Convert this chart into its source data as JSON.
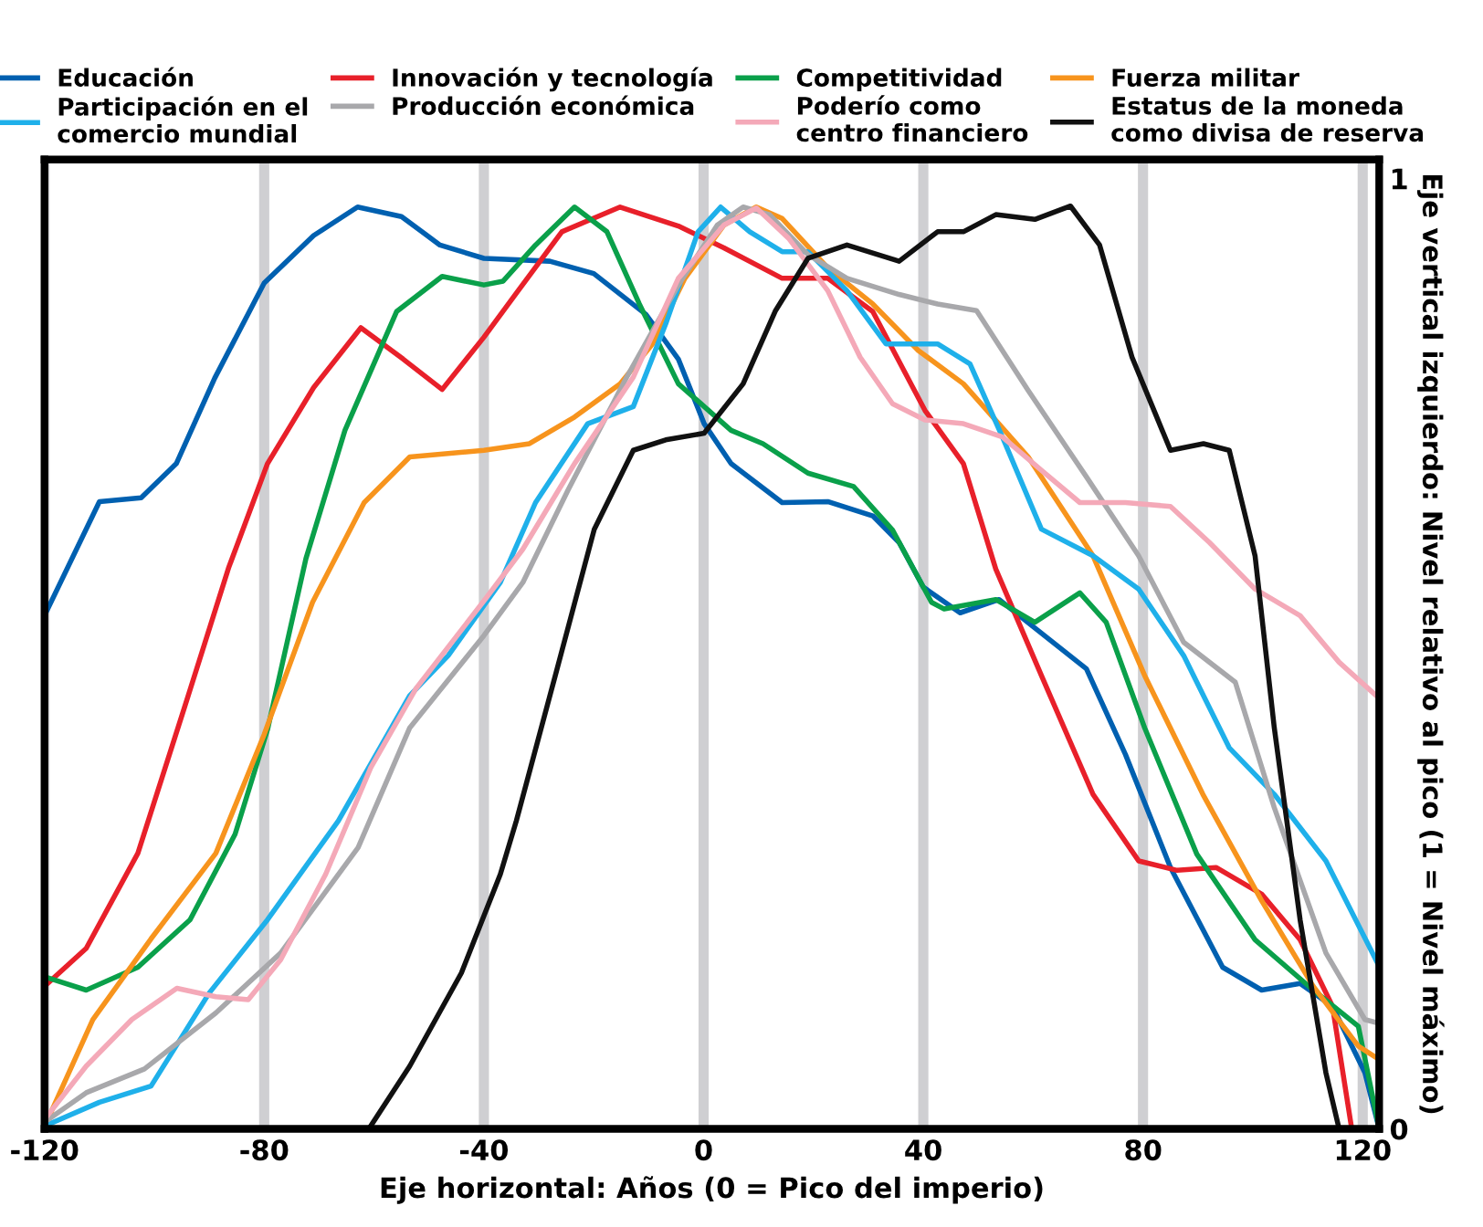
{
  "chart_data": {
    "type": "line",
    "xlabel": "Eje horizontal: Años (0 = Pico del imperio)",
    "ylabel": "Eje vertical izquierdo: Nivel relativo al pico (1 = Nivel máximo)",
    "xlim": [
      -120,
      123
    ],
    "xticks": [
      -120,
      -80,
      -40,
      0,
      40,
      80,
      120
    ],
    "ylim": [
      0,
      1.02
    ],
    "yticks": [
      0,
      1
    ],
    "grid": "x",
    "legend": "top",
    "marker": "none",
    "line_style": "solid",
    "series": [
      {
        "name": "Educación",
        "color": "#0060b0",
        "x": [
          -120,
          -110,
          -102.4,
          -96,
          -89,
          -80,
          -71,
          -63,
          -55,
          -48,
          -40,
          -28,
          -20,
          -10.5,
          -4.6,
          0.1,
          5,
          14.3,
          22.6,
          30.8,
          35.6,
          40,
          46.7,
          53.8,
          59,
          69.7,
          76.8,
          85,
          94.5,
          101.6,
          108.6,
          114.5,
          120.4,
          123
        ],
        "values": [
          0.54,
          0.66,
          0.664,
          0.7,
          0.79,
          0.89,
          0.94,
          0.97,
          0.96,
          0.93,
          0.916,
          0.913,
          0.9,
          0.857,
          0.81,
          0.742,
          0.7,
          0.659,
          0.66,
          0.645,
          0.617,
          0.57,
          0.543,
          0.557,
          0.533,
          0.484,
          0.394,
          0.275,
          0.17,
          0.146,
          0.153,
          0.129,
          0.059,
          0
        ]
      },
      {
        "name": "Innovación y tecnología",
        "color": "#e8202a",
        "x": [
          -120,
          -112.4,
          -103,
          -94.7,
          -86.5,
          -79.4,
          -71,
          -62.4,
          -54.7,
          -47.6,
          -40,
          -34,
          -25.8,
          -15.2,
          -4.6,
          3.7,
          14.3,
          22.6,
          30.8,
          40.3,
          47.3,
          53.2,
          61.5,
          70.9,
          79.2,
          86.2,
          93.3,
          101.6,
          108.6,
          114.5,
          118
        ],
        "values": [
          0.15,
          0.19,
          0.29,
          0.44,
          0.59,
          0.7,
          0.78,
          0.843,
          0.81,
          0.778,
          0.833,
          0.88,
          0.944,
          0.97,
          0.95,
          0.927,
          0.895,
          0.895,
          0.86,
          0.756,
          0.7,
          0.589,
          0.477,
          0.352,
          0.282,
          0.272,
          0.275,
          0.247,
          0.199,
          0.129,
          0
        ]
      },
      {
        "name": "Competitividad",
        "color": "#0aa04a",
        "x": [
          -120,
          -112.4,
          -103,
          -93.5,
          -85.3,
          -79.4,
          -72.4,
          -65.3,
          -55.9,
          -47.6,
          -40,
          -36.5,
          -30.6,
          -23.5,
          -17.6,
          -11.7,
          -4.6,
          5,
          10.8,
          19,
          27.3,
          34.4,
          41.5,
          43.8,
          53.2,
          60.3,
          68.5,
          73.3,
          80.3,
          89.8,
          100.4,
          111,
          119.2,
          123
        ],
        "values": [
          0.16,
          0.146,
          0.17,
          0.22,
          0.31,
          0.42,
          0.6,
          0.735,
          0.86,
          0.897,
          0.888,
          0.892,
          0.93,
          0.97,
          0.944,
          0.868,
          0.784,
          0.735,
          0.721,
          0.69,
          0.676,
          0.63,
          0.554,
          0.547,
          0.557,
          0.533,
          0.564,
          0.533,
          0.422,
          0.289,
          0.199,
          0.146,
          0.108,
          0
        ]
      },
      {
        "name": "Fuerza militar",
        "color": "#f7941d",
        "x": [
          -119.4,
          -111.2,
          -100.6,
          -88.8,
          -80,
          -71.2,
          -61.8,
          -53.5,
          -40,
          -31.7,
          -23.5,
          -15.2,
          -9.3,
          -3.4,
          3.7,
          9.6,
          14.3,
          22.6,
          30.8,
          39.1,
          47.3,
          59.1,
          70.9,
          80.3,
          90.9,
          101.6,
          111,
          119.2,
          123
        ],
        "values": [
          0.01,
          0.115,
          0.2,
          0.29,
          0.415,
          0.554,
          0.659,
          0.707,
          0.714,
          0.721,
          0.749,
          0.784,
          0.826,
          0.895,
          0.951,
          0.97,
          0.958,
          0.906,
          0.868,
          0.819,
          0.784,
          0.707,
          0.603,
          0.477,
          0.352,
          0.24,
          0.15,
          0.087,
          0.073
        ]
      },
      {
        "name": "Participación en el\ncomercio mundial",
        "color": "#1fb0ea",
        "x": [
          -120,
          -110,
          -100.6,
          -90,
          -79.4,
          -66.5,
          -53.5,
          -46.5,
          -37,
          -30.6,
          -21.1,
          -12.8,
          -6.9,
          -1,
          3.1,
          8.4,
          14.3,
          19,
          26.1,
          33.2,
          40.3,
          42.6,
          48.5,
          54.4,
          61.5,
          70.9,
          79.2,
          87.4,
          95.7,
          103.9,
          113.3,
          123
        ],
        "values": [
          0.003,
          0.028,
          0.045,
          0.143,
          0.22,
          0.324,
          0.456,
          0.498,
          0.575,
          0.659,
          0.742,
          0.76,
          0.847,
          0.944,
          0.97,
          0.944,
          0.923,
          0.923,
          0.882,
          0.826,
          0.826,
          0.826,
          0.805,
          0.728,
          0.631,
          0.603,
          0.568,
          0.498,
          0.401,
          0.352,
          0.282,
          0.171
        ]
      },
      {
        "name": "Producción económica",
        "color": "#a8a8ab",
        "x": [
          -120,
          -112.4,
          -101.8,
          -88.8,
          -77,
          -62.9,
          -53.5,
          -40,
          -32.9,
          -24.7,
          -14,
          -4.6,
          2.5,
          7.2,
          12,
          19,
          26.1,
          35.6,
          42.6,
          49.7,
          59.1,
          69.7,
          79.2,
          87.4,
          96.8,
          103.9,
          113.3,
          120.4,
          123
        ],
        "values": [
          0.007,
          0.038,
          0.063,
          0.122,
          0.185,
          0.296,
          0.422,
          0.519,
          0.575,
          0.672,
          0.791,
          0.888,
          0.951,
          0.97,
          0.962,
          0.92,
          0.895,
          0.878,
          0.868,
          0.861,
          0.777,
          0.686,
          0.603,
          0.512,
          0.47,
          0.338,
          0.185,
          0.115,
          0.111
        ]
      },
      {
        "name": "Poderío como\ncentro financiero",
        "color": "#f4a9b8",
        "x": [
          -120,
          -112.4,
          -104.1,
          -95.9,
          -88.8,
          -82.9,
          -77,
          -68.8,
          -60.6,
          -52.4,
          -39.4,
          -32.9,
          -23.5,
          -12.8,
          -4.6,
          3.7,
          9.6,
          15.5,
          22.6,
          28.5,
          34.4,
          40.3,
          47.3,
          54.4,
          61.5,
          68.5,
          76.8,
          85,
          92.1,
          100.4,
          108.6,
          115.7,
          123
        ],
        "values": [
          0.01,
          0.066,
          0.115,
          0.148,
          0.139,
          0.136,
          0.178,
          0.268,
          0.38,
          0.463,
          0.56,
          0.61,
          0.7,
          0.791,
          0.895,
          0.951,
          0.969,
          0.937,
          0.882,
          0.812,
          0.763,
          0.746,
          0.742,
          0.728,
          0.693,
          0.659,
          0.659,
          0.655,
          0.617,
          0.568,
          0.54,
          0.491,
          0.453
        ]
      },
      {
        "name": "Estatus de la moneda\ncomo divisa de reserva",
        "color": "#111111",
        "x": [
          -60.6,
          -53.5,
          -44.1,
          -37,
          -34.1,
          -27,
          -19.9,
          -12.8,
          -6.9,
          0.1,
          7.2,
          13.1,
          19,
          26.1,
          35.6,
          42.6,
          47.3,
          53.2,
          60.3,
          66.8,
          72.1,
          78,
          85,
          91,
          95.7,
          100.4,
          103.9,
          108.6,
          113.3,
          115.7
        ],
        "values": [
          0.003,
          0.066,
          0.164,
          0.268,
          0.324,
          0.477,
          0.631,
          0.714,
          0.725,
          0.732,
          0.784,
          0.861,
          0.916,
          0.93,
          0.913,
          0.944,
          0.944,
          0.962,
          0.957,
          0.971,
          0.93,
          0.812,
          0.714,
          0.721,
          0.714,
          0.603,
          0.422,
          0.22,
          0.059,
          0
        ]
      }
    ]
  }
}
